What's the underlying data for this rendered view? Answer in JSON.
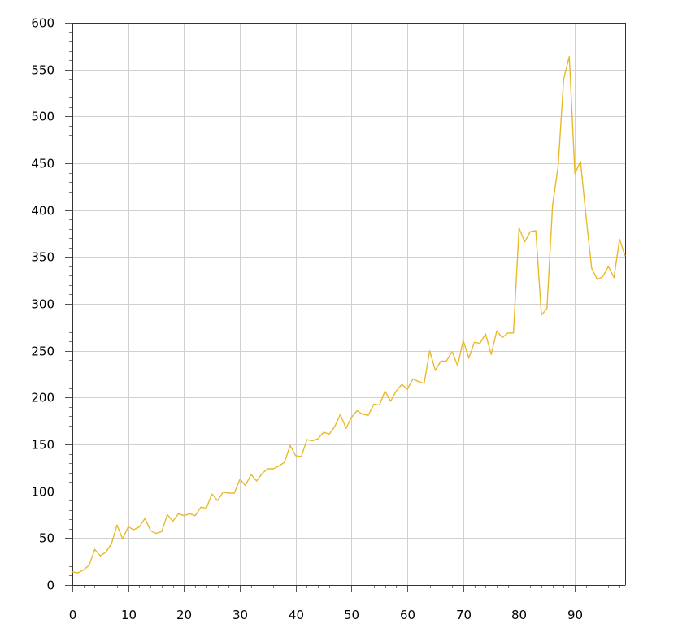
{
  "chart_data": {
    "type": "line",
    "title": "",
    "xlabel": "",
    "ylabel": "",
    "xlim": [
      0,
      99
    ],
    "ylim": [
      0,
      600
    ],
    "x_ticks": [
      "0",
      "10",
      "20",
      "30",
      "40",
      "50",
      "60",
      "70",
      "80",
      "90"
    ],
    "y_ticks": [
      "0",
      "50",
      "100",
      "150",
      "200",
      "250",
      "300",
      "350",
      "400",
      "450",
      "500",
      "550",
      "600"
    ],
    "grid": true,
    "series": [
      {
        "color": "#e8b92a",
        "x": [
          0,
          1,
          2,
          3,
          4,
          5,
          6,
          7,
          8,
          9,
          10,
          11,
          12,
          13,
          14,
          15,
          16,
          17,
          18,
          19,
          20,
          21,
          22,
          23,
          24,
          25,
          26,
          27,
          28,
          29,
          30,
          31,
          32,
          33,
          34,
          35,
          36,
          37,
          38,
          39,
          40,
          41,
          42,
          43,
          44,
          45,
          46,
          47,
          48,
          49,
          50,
          51,
          52,
          53,
          54,
          55,
          56,
          57,
          58,
          59,
          60,
          61,
          62,
          63,
          64,
          65,
          66,
          67,
          68,
          69,
          70,
          71,
          72,
          73,
          74,
          75,
          76,
          77,
          78,
          79,
          80,
          81,
          82,
          83,
          84,
          85,
          86,
          87,
          88,
          89,
          90,
          91,
          92,
          93,
          94,
          95,
          96,
          97,
          98,
          99
        ],
        "values": [
          14,
          13,
          16,
          21,
          38,
          31,
          35,
          44,
          64,
          49,
          62,
          59,
          62,
          71,
          58,
          55,
          57,
          75,
          68,
          76,
          74,
          76,
          74,
          83,
          82,
          97,
          90,
          99,
          98,
          98,
          113,
          106,
          118,
          111,
          119,
          124,
          124,
          127,
          131,
          149,
          138,
          137,
          155,
          154,
          156,
          163,
          161,
          169,
          182,
          167,
          179,
          186,
          182,
          181,
          193,
          192,
          207,
          196,
          207,
          214,
          209,
          220,
          217,
          215,
          250,
          229,
          239,
          239,
          249,
          234,
          261,
          242,
          259,
          258,
          268,
          246,
          271,
          264,
          269,
          269,
          381,
          366,
          377,
          378,
          288,
          295,
          405,
          447,
          540,
          564,
          439,
          452,
          393,
          338,
          326,
          329,
          340,
          328,
          369,
          351
        ]
      }
    ]
  }
}
